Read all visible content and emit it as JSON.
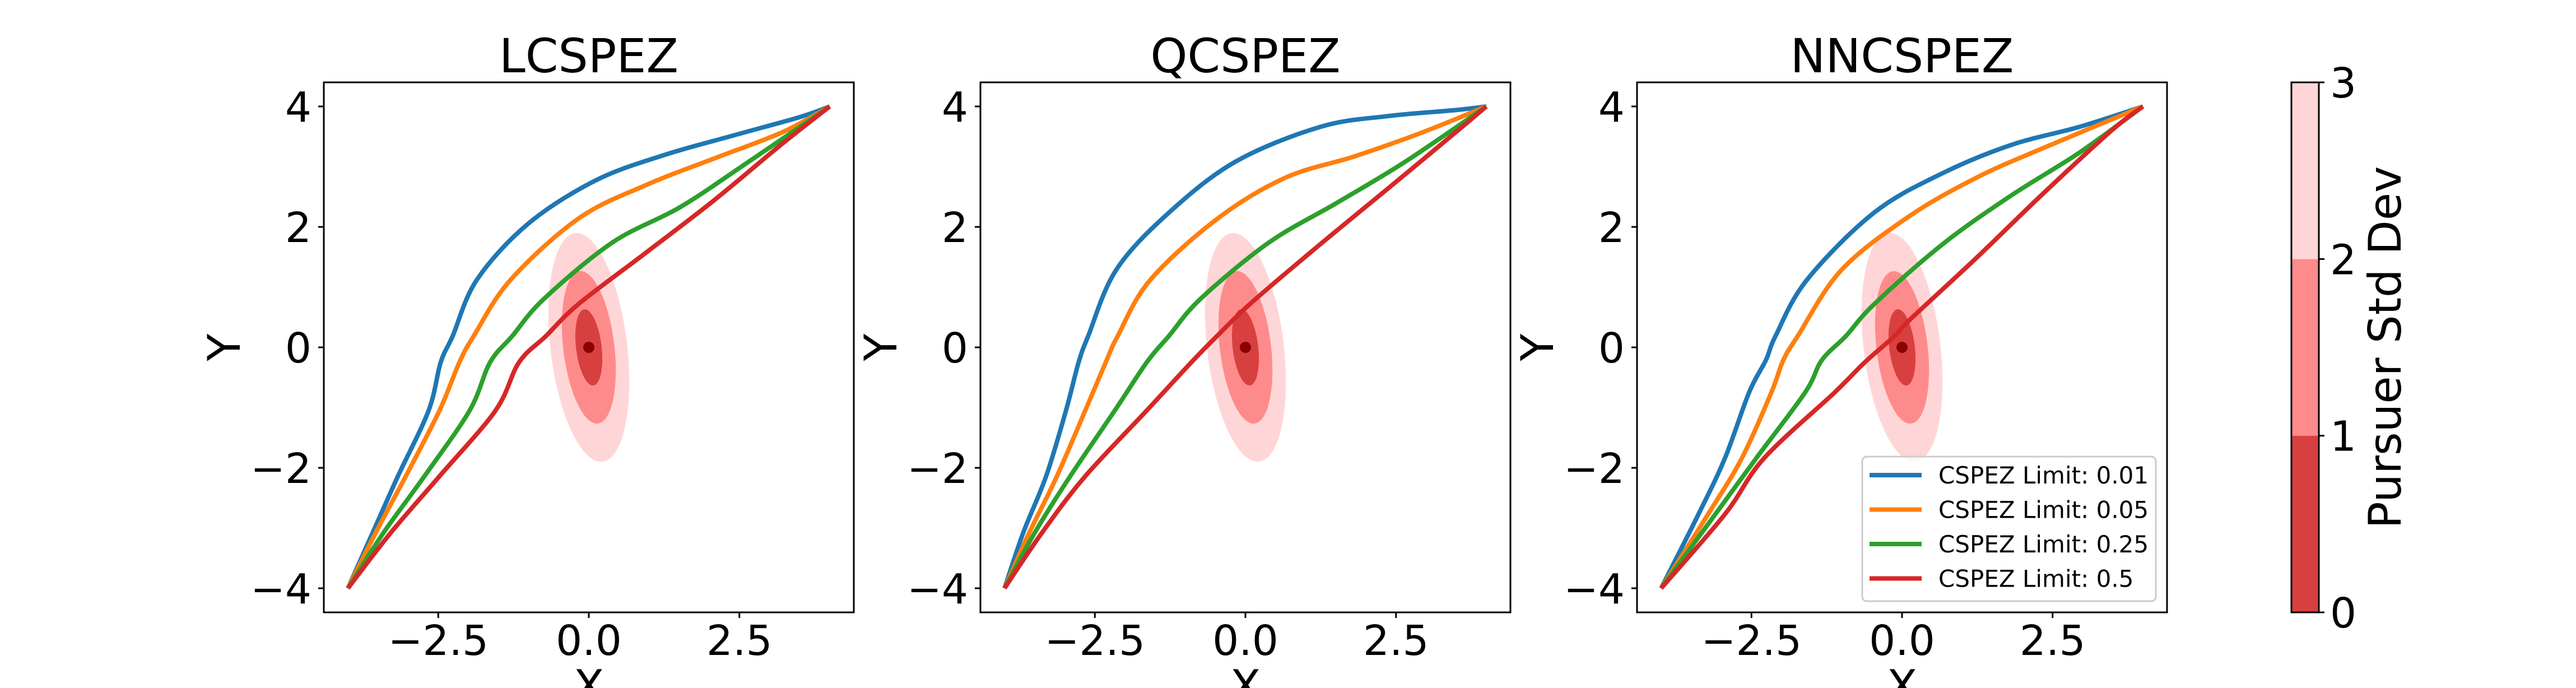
{
  "chart_data": [
    {
      "type": "line",
      "title": "LCSPEZ",
      "xlabel": "X",
      "ylabel": "Y",
      "xlim": [
        -4.4,
        4.4
      ],
      "ylim": [
        -4.4,
        4.4
      ],
      "xticks": [
        -2.5,
        0.0,
        2.5
      ],
      "xtick_labels": [
        "−2.5",
        "0.0",
        "2.5"
      ],
      "yticks": [
        -4,
        -2,
        0,
        2,
        4
      ],
      "ytick_labels": [
        "−4",
        "−2",
        "0",
        "2",
        "4"
      ],
      "grid": false,
      "pursuer": {
        "mean": [
          0,
          0
        ],
        "std_x": 0.224,
        "std_y": 0.633,
        "correlation": -0.3,
        "contour_levels_std": [
          1,
          2,
          3
        ]
      },
      "series": [
        {
          "name": "CSPEZ Limit: 0.01",
          "color": "#1f77b4",
          "x": [
            -4.0,
            -3.59,
            -3.17,
            -2.66,
            -2.46,
            -2.26,
            -1.86,
            -1.01,
            0.11,
            1.24,
            2.37,
            3.49,
            4.0
          ],
          "y": [
            -4.0,
            -3.08,
            -2.14,
            -1.05,
            -0.25,
            0.19,
            1.12,
            2.05,
            2.77,
            3.19,
            3.51,
            3.82,
            4.0
          ]
        },
        {
          "name": "CSPEZ Limit: 0.05",
          "color": "#ff7f0e",
          "x": [
            -4.0,
            -3.54,
            -3.04,
            -2.48,
            -2.15,
            -1.91,
            -1.3,
            -0.17,
            0.96,
            2.09,
            3.21,
            4.0
          ],
          "y": [
            -4.0,
            -3.08,
            -2.14,
            -1.05,
            -0.25,
            0.19,
            1.12,
            2.14,
            2.7,
            3.14,
            3.57,
            4.0
          ]
        },
        {
          "name": "CSPEZ Limit: 0.25",
          "color": "#2ca02c",
          "x": [
            -4.0,
            -3.41,
            -2.73,
            -1.98,
            -1.64,
            -1.27,
            -0.74,
            0.39,
            1.52,
            2.65,
            4.0
          ],
          "y": [
            -4.0,
            -3.08,
            -2.14,
            -1.05,
            -0.25,
            0.19,
            0.81,
            1.74,
            2.33,
            3.08,
            4.0
          ]
        },
        {
          "name": "CSPEZ Limit: 0.5",
          "color": "#d62728",
          "x": [
            -4.0,
            -3.29,
            -2.48,
            -1.55,
            -1.16,
            -0.71,
            -0.17,
            0.96,
            2.09,
            3.21,
            4.0
          ],
          "y": [
            -4.0,
            -3.08,
            -2.14,
            -1.05,
            -0.25,
            0.19,
            0.72,
            1.58,
            2.45,
            3.38,
            4.0
          ]
        }
      ]
    },
    {
      "type": "line",
      "title": "QCSPEZ",
      "xlabel": "X",
      "ylabel": "Y",
      "xlim": [
        -4.4,
        4.4
      ],
      "ylim": [
        -4.4,
        4.4
      ],
      "xticks": [
        -2.5,
        0.0,
        2.5
      ],
      "xtick_labels": [
        "−2.5",
        "0.0",
        "2.5"
      ],
      "yticks": [
        -4,
        -2,
        0,
        2,
        4
      ],
      "ytick_labels": [
        "−4",
        "−2",
        "0",
        "2",
        "4"
      ],
      "grid": false,
      "pursuer": {
        "mean": [
          0,
          0
        ],
        "std_x": 0.224,
        "std_y": 0.633,
        "correlation": -0.3,
        "contour_levels_std": [
          1,
          2,
          3
        ]
      },
      "series": [
        {
          "name": "CSPEZ Limit: 0.01",
          "color": "#1f77b4",
          "x": [
            -4.0,
            -3.69,
            -3.31,
            -2.98,
            -2.77,
            -2.61,
            -2.15,
            -1.3,
            -0.17,
            1.24,
            2.37,
            3.49,
            4.0
          ],
          "y": [
            -4.0,
            -3.08,
            -2.14,
            -1.05,
            -0.25,
            0.19,
            1.28,
            2.21,
            3.08,
            3.66,
            3.84,
            3.94,
            4.0
          ]
        },
        {
          "name": "CSPEZ Limit: 0.05",
          "color": "#ff7f0e",
          "x": [
            -4.0,
            -3.59,
            -3.13,
            -2.66,
            -2.32,
            -2.12,
            -1.58,
            -0.46,
            0.67,
            1.81,
            2.94,
            4.0
          ],
          "y": [
            -4.0,
            -3.08,
            -2.14,
            -1.05,
            -0.25,
            0.19,
            1.12,
            2.14,
            2.82,
            3.17,
            3.57,
            4.0
          ]
        },
        {
          "name": "CSPEZ Limit: 0.25",
          "color": "#2ca02c",
          "x": [
            -4.0,
            -3.5,
            -2.91,
            -2.17,
            -1.64,
            -1.27,
            -0.74,
            0.39,
            1.52,
            2.65,
            4.0
          ],
          "y": [
            -4.0,
            -3.08,
            -2.14,
            -1.05,
            -0.25,
            0.19,
            0.81,
            1.74,
            2.4,
            3.08,
            4.0
          ]
        },
        {
          "name": "CSPEZ Limit: 0.5",
          "color": "#d62728",
          "x": [
            -4.0,
            -3.38,
            -2.66,
            -1.64,
            -0.9,
            -0.47,
            0.11,
            1.24,
            2.37,
            3.49,
            4.0
          ],
          "y": [
            -4.0,
            -3.08,
            -2.14,
            -1.05,
            -0.25,
            0.19,
            0.75,
            1.71,
            2.64,
            3.57,
            4.0
          ]
        }
      ]
    },
    {
      "type": "line",
      "title": "NNCSPEZ",
      "xlabel": "X",
      "ylabel": "Y",
      "xlim": [
        -4.4,
        4.4
      ],
      "ylim": [
        -4.4,
        4.4
      ],
      "xticks": [
        -2.5,
        0.0,
        2.5
      ],
      "xtick_labels": [
        "−2.5",
        "0.0",
        "2.5"
      ],
      "yticks": [
        -4,
        -2,
        0,
        2,
        4
      ],
      "ytick_labels": [
        "−4",
        "−2",
        "0",
        "2",
        "4"
      ],
      "grid": false,
      "legend_position": "lower-right",
      "pursuer": {
        "mean": [
          0,
          0
        ],
        "std_x": 0.224,
        "std_y": 0.633,
        "correlation": -0.3,
        "contour_levels_std": [
          1,
          2,
          3
        ]
      },
      "series": [
        {
          "name": "CSPEZ Limit: 0.01",
          "color": "#1f77b4",
          "x": [
            -4.0,
            -3.38,
            -2.94,
            -2.54,
            -2.26,
            -2.1,
            -1.58,
            -0.46,
            0.67,
            1.81,
            2.94,
            4.0
          ],
          "y": [
            -4.0,
            -2.77,
            -1.84,
            -0.75,
            -0.21,
            0.19,
            1.12,
            2.24,
            2.89,
            3.36,
            3.66,
            4.0
          ]
        },
        {
          "name": "CSPEZ Limit: 0.05",
          "color": "#ff7f0e",
          "x": [
            -4.0,
            -3.22,
            -2.66,
            -2.17,
            -1.97,
            -1.73,
            -1.01,
            0.11,
            1.24,
            2.37,
            4.0
          ],
          "y": [
            -4.0,
            -2.77,
            -1.84,
            -0.75,
            -0.21,
            0.19,
            1.28,
            2.17,
            2.82,
            3.32,
            4.0
          ]
        },
        {
          "name": "CSPEZ Limit: 0.25",
          "color": "#2ca02c",
          "x": [
            -4.0,
            -3.1,
            -2.42,
            -1.61,
            -1.33,
            -0.93,
            -0.46,
            0.67,
            1.81,
            2.94,
            4.0
          ],
          "y": [
            -4.0,
            -2.77,
            -1.84,
            -0.75,
            -0.21,
            0.19,
            0.72,
            1.71,
            2.52,
            3.23,
            4.0
          ]
        },
        {
          "name": "CSPEZ Limit: 0.5",
          "color": "#d62728",
          "x": [
            -4.0,
            -2.94,
            -2.29,
            -1.12,
            -0.62,
            -0.12,
            0.11,
            1.24,
            2.37,
            3.49,
            4.0
          ],
          "y": [
            -4.0,
            -2.77,
            -1.84,
            -0.75,
            -0.25,
            0.19,
            0.44,
            1.49,
            2.58,
            3.61,
            4.0
          ]
        }
      ]
    }
  ],
  "legend": {
    "entries": [
      {
        "label": "CSPEZ Limit: 0.01",
        "color": "#1f77b4"
      },
      {
        "label": "CSPEZ Limit: 0.05",
        "color": "#ff7f0e"
      },
      {
        "label": "CSPEZ Limit: 0.25",
        "color": "#2ca02c"
      },
      {
        "label": "CSPEZ Limit: 0.5",
        "color": "#d62728"
      }
    ]
  },
  "colorbar": {
    "label": "Pursuer Std Dev",
    "range": [
      0,
      3
    ],
    "ticks": [
      0,
      1,
      2,
      3
    ],
    "tick_labels": [
      "0",
      "1",
      "2",
      "3"
    ],
    "bands": [
      {
        "from": 0,
        "to": 1,
        "color": "#d84040"
      },
      {
        "from": 1,
        "to": 2,
        "color": "#fe8b8b"
      },
      {
        "from": 2,
        "to": 3,
        "color": "#ffd6d7"
      }
    ],
    "mean_marker_color": "#8b0000"
  }
}
